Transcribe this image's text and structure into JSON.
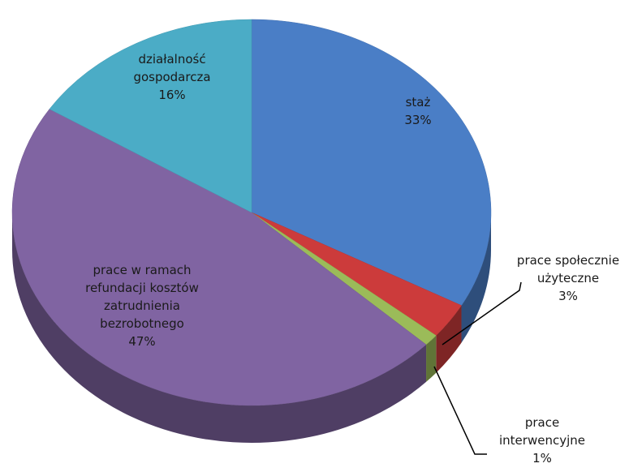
{
  "chart_data": {
    "type": "pie3d",
    "categories": [
      "staż",
      "prace społecznie użyteczne",
      "prace interwencyjne",
      "prace w ramach refundacji kosztów zatrudnienia bezrobotnego",
      "działalność gospodarcza"
    ],
    "values": [
      33,
      3,
      1,
      47,
      16
    ],
    "value_labels": [
      "33%",
      "3%",
      "1%",
      "47%",
      "16%"
    ],
    "colors": [
      "#4a7ec6",
      "#cc3b3b",
      "#9bbb59",
      "#8064a2",
      "#4bacc6"
    ]
  }
}
